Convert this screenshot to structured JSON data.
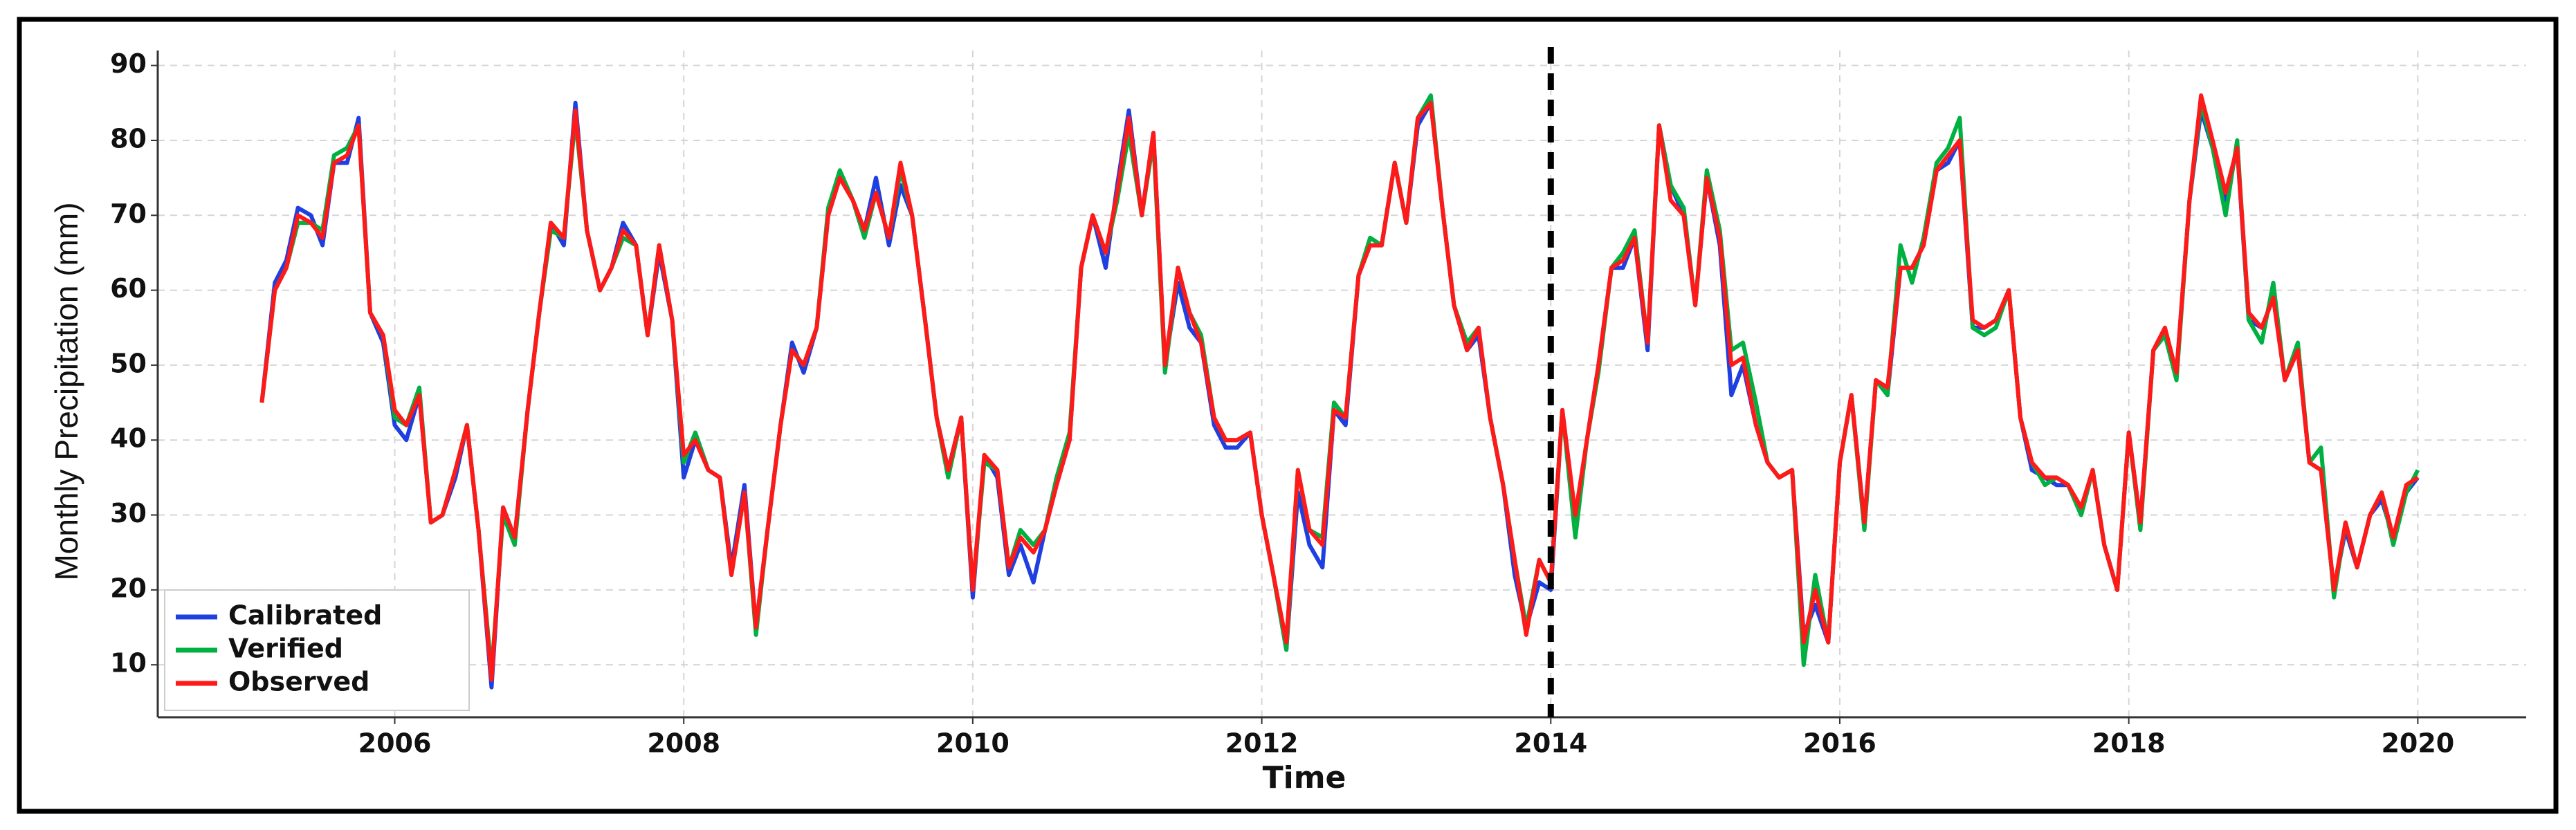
{
  "chart_data": {
    "type": "line",
    "x_label": "Time",
    "y_label": "Monthly Precipitation (mm)",
    "x": [
      2005.08,
      2005.17,
      2005.25,
      2005.33,
      2005.42,
      2005.5,
      2005.58,
      2005.67,
      2005.75,
      2005.83,
      2005.92,
      2006,
      2006.08,
      2006.17,
      2006.25,
      2006.33,
      2006.42,
      2006.5,
      2006.58,
      2006.67,
      2006.75,
      2006.83,
      2006.92,
      2007,
      2007.08,
      2007.17,
      2007.25,
      2007.33,
      2007.42,
      2007.5,
      2007.58,
      2007.67,
      2007.75,
      2007.83,
      2007.92,
      2008,
      2008.08,
      2008.17,
      2008.25,
      2008.33,
      2008.42,
      2008.5,
      2008.58,
      2008.67,
      2008.75,
      2008.83,
      2008.92,
      2009,
      2009.08,
      2009.17,
      2009.25,
      2009.33,
      2009.42,
      2009.5,
      2009.58,
      2009.67,
      2009.75,
      2009.83,
      2009.92,
      2010,
      2010.08,
      2010.17,
      2010.25,
      2010.33,
      2010.42,
      2010.5,
      2010.58,
      2010.67,
      2010.75,
      2010.83,
      2010.92,
      2011,
      2011.08,
      2011.17,
      2011.25,
      2011.33,
      2011.42,
      2011.5,
      2011.58,
      2011.67,
      2011.75,
      2011.83,
      2011.92,
      2012,
      2012.08,
      2012.17,
      2012.25,
      2012.33,
      2012.42,
      2012.5,
      2012.58,
      2012.67,
      2012.75,
      2012.83,
      2012.92,
      2013,
      2013.08,
      2013.17,
      2013.25,
      2013.33,
      2013.42,
      2013.5,
      2013.58,
      2013.67,
      2013.75,
      2013.83,
      2013.92,
      2014,
      2014.08,
      2014.17,
      2014.25,
      2014.33,
      2014.42,
      2014.5,
      2014.58,
      2014.67,
      2014.75,
      2014.83,
      2014.92,
      2015,
      2015.08,
      2015.17,
      2015.25,
      2015.33,
      2015.42,
      2015.5,
      2015.58,
      2015.67,
      2015.75,
      2015.83,
      2015.92,
      2016,
      2016.08,
      2016.17,
      2016.25,
      2016.33,
      2016.42,
      2016.5,
      2016.58,
      2016.67,
      2016.75,
      2016.83,
      2016.92,
      2017,
      2017.08,
      2017.17,
      2017.25,
      2017.33,
      2017.42,
      2017.5,
      2017.58,
      2017.67,
      2017.75,
      2017.83,
      2017.92,
      2018,
      2018.08,
      2018.17,
      2018.25,
      2018.33,
      2018.42,
      2018.5,
      2018.58,
      2018.67,
      2018.75,
      2018.83,
      2018.92,
      2019,
      2019.08,
      2019.17,
      2019.25,
      2019.33,
      2019.42,
      2019.5,
      2019.58,
      2019.67,
      2019.75,
      2019.83,
      2019.92,
      2020
    ],
    "series": [
      {
        "name": "Calibrated",
        "color": "#1f3fe0",
        "values": [
          45,
          61,
          64,
          71,
          70,
          66,
          77,
          77,
          83,
          57,
          53,
          42,
          40,
          46,
          29,
          30,
          35,
          42,
          28,
          7,
          31,
          27,
          44,
          57,
          69,
          66,
          85,
          68,
          60,
          63,
          69,
          66,
          54,
          65,
          56,
          35,
          40,
          36,
          35,
          23,
          34,
          15,
          28,
          42,
          53,
          49,
          55,
          70,
          75,
          72,
          68,
          75,
          66,
          74,
          70,
          56,
          43,
          36,
          43,
          19,
          38,
          35,
          22,
          26,
          21,
          28,
          34,
          40,
          63,
          70,
          63,
          74,
          84,
          70,
          81,
          50,
          61,
          55,
          53,
          42,
          39,
          39,
          41,
          30,
          22,
          12,
          33,
          26,
          23,
          44,
          42,
          62,
          66,
          66,
          77,
          69,
          82,
          85,
          71,
          58,
          52,
          54,
          43,
          34,
          22,
          15,
          21,
          20,
          44,
          29,
          40,
          50,
          63,
          63,
          67,
          52,
          82,
          74,
          70,
          58,
          75,
          66,
          46,
          50,
          42,
          37,
          35,
          36,
          14,
          18,
          13,
          37,
          46,
          29,
          48,
          46,
          63,
          63,
          66,
          76,
          77,
          80,
          55,
          55,
          56,
          60,
          43,
          36,
          35,
          34,
          34,
          30,
          36,
          26,
          20,
          41,
          29,
          52,
          54,
          49,
          72,
          84,
          79,
          72,
          79,
          56,
          55,
          59,
          48,
          52,
          37,
          36,
          20,
          28,
          23,
          30,
          32,
          27,
          33,
          35
        ]
      },
      {
        "name": "Verified",
        "color": "#00b040",
        "values": [
          45,
          60,
          63,
          69,
          69,
          68,
          78,
          79,
          82,
          57,
          54,
          43,
          42,
          47,
          29,
          30,
          36,
          42,
          28,
          9,
          30,
          26,
          44,
          57,
          68,
          67,
          83,
          68,
          60,
          63,
          67,
          66,
          54,
          66,
          56,
          37,
          41,
          36,
          35,
          22,
          33,
          14,
          28,
          42,
          52,
          50,
          55,
          71,
          76,
          72,
          67,
          73,
          67,
          76,
          70,
          56,
          43,
          35,
          43,
          20,
          37,
          36,
          23,
          28,
          26,
          28,
          35,
          41,
          63,
          70,
          65,
          72,
          81,
          70,
          80,
          49,
          63,
          57,
          54,
          43,
          40,
          40,
          41,
          30,
          22,
          12,
          36,
          28,
          27,
          45,
          43,
          62,
          67,
          66,
          77,
          69,
          83,
          86,
          71,
          58,
          53,
          55,
          43,
          34,
          24,
          15,
          24,
          21,
          44,
          27,
          40,
          49,
          63,
          65,
          68,
          53,
          82,
          74,
          71,
          58,
          76,
          68,
          52,
          53,
          45,
          37,
          35,
          36,
          10,
          22,
          13,
          37,
          46,
          28,
          48,
          46,
          66,
          61,
          67,
          77,
          79,
          83,
          55,
          54,
          55,
          60,
          43,
          37,
          34,
          35,
          34,
          30,
          36,
          26,
          20,
          41,
          28,
          52,
          54,
          48,
          72,
          85,
          79,
          70,
          80,
          56,
          53,
          61,
          48,
          53,
          37,
          39,
          19,
          29,
          23,
          30,
          33,
          26,
          33,
          36
        ]
      },
      {
        "name": "Observed",
        "color": "#ff1a1a",
        "values": [
          45,
          60,
          63,
          70,
          69,
          67,
          77,
          78,
          82,
          57,
          54,
          44,
          42,
          46,
          29,
          30,
          36,
          42,
          28,
          8,
          31,
          27,
          44,
          57,
          69,
          67,
          84,
          68,
          60,
          63,
          68,
          66,
          54,
          66,
          56,
          38,
          40,
          36,
          35,
          22,
          33,
          15,
          28,
          42,
          52,
          50,
          55,
          70,
          75,
          72,
          68,
          73,
          67,
          77,
          70,
          56,
          43,
          36,
          43,
          20,
          38,
          36,
          23,
          27,
          25,
          28,
          34,
          40,
          63,
          70,
          65,
          73,
          83,
          70,
          81,
          50,
          63,
          57,
          53,
          43,
          40,
          40,
          41,
          30,
          22,
          13,
          36,
          28,
          26,
          44,
          43,
          62,
          66,
          66,
          77,
          69,
          83,
          85,
          71,
          58,
          52,
          55,
          43,
          34,
          24,
          14,
          24,
          21,
          44,
          30,
          40,
          50,
          63,
          64,
          67,
          53,
          82,
          72,
          70,
          58,
          75,
          67,
          50,
          51,
          42,
          37,
          35,
          36,
          13,
          20,
          13,
          37,
          46,
          29,
          48,
          47,
          63,
          63,
          66,
          76,
          78,
          80,
          56,
          55,
          56,
          60,
          43,
          37,
          35,
          35,
          34,
          31,
          36,
          26,
          20,
          41,
          29,
          52,
          55,
          49,
          72,
          86,
          80,
          73,
          79,
          57,
          55,
          59,
          48,
          52,
          37,
          36,
          20,
          29,
          23,
          30,
          33,
          27,
          34,
          35
        ]
      }
    ],
    "xlim": [
      2004.36,
      2020.75
    ],
    "xticks": [
      2006,
      2008,
      2010,
      2012,
      2014,
      2016,
      2018,
      2020
    ],
    "ylim": [
      3,
      92
    ],
    "yticks": [
      10,
      20,
      30,
      40,
      50,
      60,
      70,
      80,
      90
    ],
    "grid": true,
    "legend": "lower left",
    "vline": 2014
  }
}
